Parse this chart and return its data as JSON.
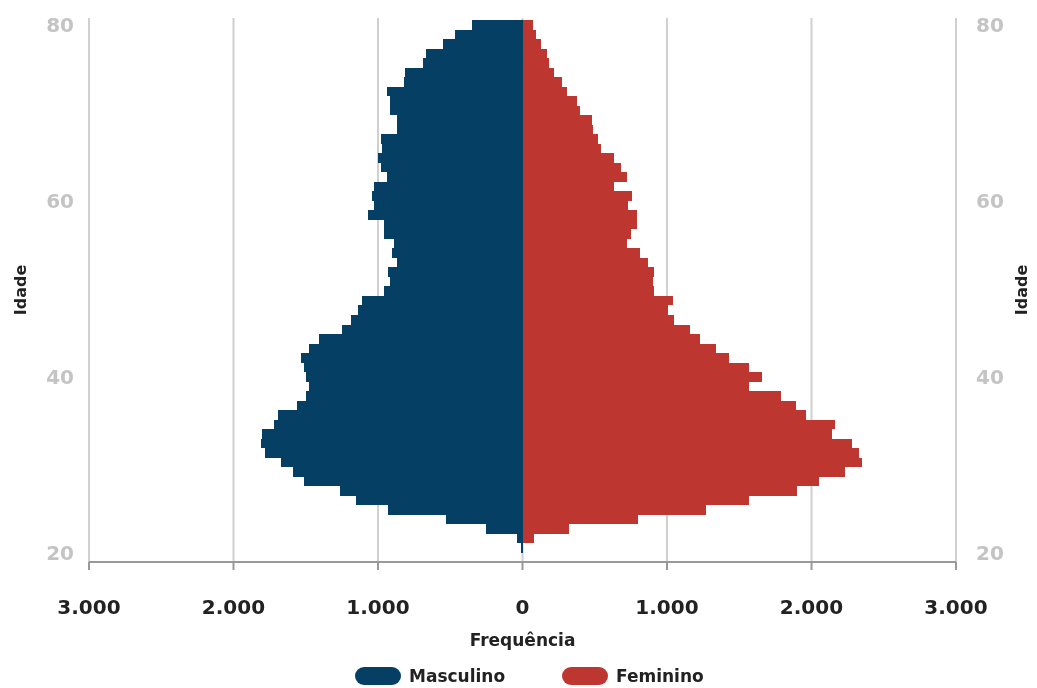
{
  "chart_data": {
    "type": "bar",
    "orientation": "horizontal",
    "xlabel": "Frequência",
    "ylabel": "Idade",
    "y2label": "Idade",
    "x": [
      80,
      78.92,
      77.84,
      76.76,
      75.68,
      74.6,
      73.52,
      72.44,
      71.36,
      70.28,
      69.2,
      68.12,
      67.04,
      65.96,
      64.88,
      63.8,
      62.72,
      61.64,
      60.56,
      59.48,
      58.4,
      57.32,
      56.24,
      55.16,
      54.08,
      53,
      51.92,
      50.84,
      49.76,
      48.68,
      47.6,
      46.52,
      45.44,
      44.36,
      43.28,
      42.2,
      41.12,
      40.04,
      38.96,
      37.88,
      36.8,
      35.72,
      34.64,
      33.56,
      32.48,
      31.4,
      30.32,
      29.24,
      28.16,
      27.08,
      26,
      24.92,
      23.84,
      22.76,
      21.68,
      20.6
    ],
    "series": [
      {
        "name": "Masculino",
        "color": "#053f63",
        "values": [
          -350,
          -470,
          -550,
          -670,
          -690,
          -810,
          -820,
          -940,
          -920,
          -920,
          -870,
          -870,
          -980,
          -970,
          -1000,
          -980,
          -940,
          -1030,
          -1040,
          -1030,
          -1070,
          -960,
          -960,
          -890,
          -900,
          -870,
          -930,
          -920,
          -960,
          -1110,
          -1140,
          -1190,
          -1250,
          -1410,
          -1480,
          -1530,
          -1510,
          -1500,
          -1480,
          -1500,
          -1560,
          -1690,
          -1720,
          -1800,
          -1810,
          -1780,
          -1670,
          -1590,
          -1510,
          -1260,
          -1150,
          -930,
          -530,
          -250,
          -40,
          -10
        ]
      },
      {
        "name": "Feminino",
        "color": "#be3630",
        "values": [
          70,
          90,
          130,
          170,
          180,
          220,
          270,
          310,
          380,
          400,
          480,
          490,
          520,
          540,
          630,
          680,
          720,
          630,
          760,
          730,
          790,
          790,
          750,
          720,
          810,
          870,
          910,
          900,
          910,
          1040,
          1010,
          1050,
          1160,
          1230,
          1340,
          1430,
          1570,
          1660,
          1570,
          1790,
          1890,
          1960,
          2160,
          2140,
          2280,
          2330,
          2350,
          2230,
          2050,
          1900,
          1570,
          1270,
          800,
          320,
          80,
          0
        ]
      }
    ],
    "xlim": [
      -3000,
      3000
    ],
    "xticks": [
      {
        "value": -3000,
        "label": "3.000"
      },
      {
        "value": -2000,
        "label": "2.000"
      },
      {
        "value": -1000,
        "label": "1.000"
      },
      0,
      {
        "value": 1000,
        "label": "1.000"
      },
      {
        "value": 2000,
        "label": "2.000"
      },
      {
        "value": 3000,
        "label": "3.000"
      }
    ],
    "ylim": [
      19,
      80.8
    ],
    "yticks": [
      20,
      40,
      60,
      80
    ],
    "y2lim": [
      19,
      80.8
    ],
    "y2ticks": [
      20,
      40,
      60,
      80
    ],
    "grid": "x",
    "legend": "bottom",
    "stacked": true
  }
}
